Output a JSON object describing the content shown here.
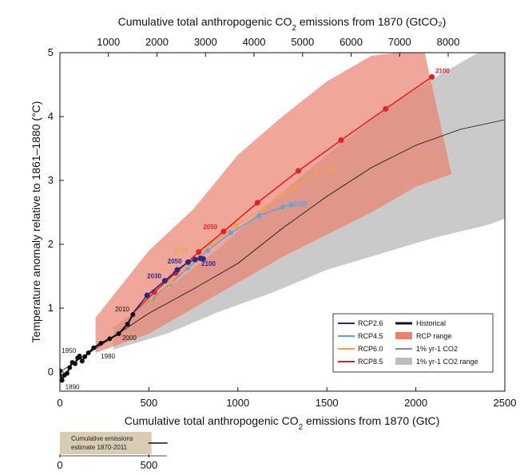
{
  "chart_data": {
    "type": "line",
    "xlabel_bottom": "Cumulative total anthropogenic CO2 emissions from 1870 (GtC)",
    "xlabel_top": "Cumulative total anthropogenic CO2 emissions from 1870 (GtCO2)",
    "ylabel": "Temperature anomaly relative to 1861–1880 (°C)",
    "xlim": [
      0,
      2500
    ],
    "ylim": [
      -0.3,
      5
    ],
    "xticks": [
      0,
      500,
      1000,
      1500,
      2000,
      2500
    ],
    "yticks": [
      0,
      1,
      2,
      3,
      4,
      5
    ],
    "xticks_top": [
      1000,
      2000,
      3000,
      4000,
      5000,
      6000,
      7000,
      8000
    ],
    "gtco2_per_gtc": 3.667,
    "colors": {
      "historical": "#111111",
      "rcp26": "#2b2a86",
      "rcp45": "#5aa6dc",
      "rcp60": "#f5a04a",
      "rcp85": "#e51f23",
      "pct_line": "#111111",
      "rcp_range": "#e9826d",
      "pct_range": "#bdbdbd"
    },
    "rcp_range": {
      "upper": [
        [
          200,
          0.85
        ],
        [
          500,
          1.9
        ],
        [
          750,
          2.55
        ],
        [
          1000,
          3.4
        ],
        [
          1250,
          4.0
        ],
        [
          1500,
          4.55
        ],
        [
          1750,
          4.95
        ],
        [
          1900,
          5.0
        ],
        [
          2050,
          5.0
        ]
      ],
      "lower": [
        [
          200,
          0.3
        ],
        [
          500,
          0.6
        ],
        [
          750,
          1.0
        ],
        [
          1000,
          1.4
        ],
        [
          1250,
          1.8
        ],
        [
          1500,
          2.15
        ],
        [
          1750,
          2.5
        ],
        [
          2000,
          2.9
        ],
        [
          2200,
          3.1
        ]
      ]
    },
    "pct_range": {
      "upper": [
        [
          300,
          0.7
        ],
        [
          600,
          1.3
        ],
        [
          900,
          1.95
        ],
        [
          1200,
          2.7
        ],
        [
          1500,
          3.4
        ],
        [
          1800,
          4.05
        ],
        [
          2100,
          4.6
        ],
        [
          2350,
          5.0
        ],
        [
          2500,
          5.0
        ]
      ],
      "lower": [
        [
          300,
          0.35
        ],
        [
          600,
          0.6
        ],
        [
          900,
          0.95
        ],
        [
          1200,
          1.25
        ],
        [
          1500,
          1.6
        ],
        [
          1800,
          1.85
        ],
        [
          2100,
          2.1
        ],
        [
          2400,
          2.3
        ],
        [
          2500,
          2.4
        ]
      ]
    },
    "pct_line": [
      [
        0,
        0.0
      ],
      [
        300,
        0.55
      ],
      [
        500,
        0.92
      ],
      [
        750,
        1.3
      ],
      [
        1000,
        1.7
      ],
      [
        1250,
        2.25
      ],
      [
        1500,
        2.75
      ],
      [
        1750,
        3.2
      ],
      [
        2000,
        3.55
      ],
      [
        2250,
        3.8
      ],
      [
        2500,
        3.95
      ]
    ],
    "series": [
      {
        "name": "Historical",
        "key": "historical",
        "points": [
          [
            0,
            0.02
          ],
          [
            12,
            -0.13
          ],
          [
            25,
            -0.05
          ],
          [
            40,
            -0.02
          ],
          [
            55,
            0.07
          ],
          [
            70,
            0.15
          ],
          [
            85,
            0.13
          ],
          [
            100,
            0.22
          ],
          [
            110,
            0.25
          ],
          [
            125,
            0.17
          ],
          [
            140,
            0.24
          ],
          [
            160,
            0.3
          ],
          [
            190,
            0.38
          ],
          [
            230,
            0.45
          ],
          [
            280,
            0.52
          ],
          [
            330,
            0.6
          ],
          [
            380,
            0.75
          ],
          [
            410,
            0.9
          ]
        ]
      },
      {
        "name": "RCP2.6",
        "key": "rcp26",
        "points": [
          [
            410,
            0.92
          ],
          [
            490,
            1.2
          ],
          [
            590,
            1.43
          ],
          [
            660,
            1.6
          ],
          [
            720,
            1.72
          ],
          [
            760,
            1.76
          ],
          [
            790,
            1.78
          ],
          [
            805,
            1.77
          ]
        ]
      },
      {
        "name": "RCP4.5",
        "key": "rcp45",
        "points": [
          [
            410,
            0.92
          ],
          [
            520,
            1.15
          ],
          [
            620,
            1.38
          ],
          [
            720,
            1.63
          ],
          [
            830,
            1.9
          ],
          [
            960,
            2.18
          ],
          [
            1120,
            2.45
          ],
          [
            1250,
            2.58
          ],
          [
            1300,
            2.62
          ]
        ]
      },
      {
        "name": "RCP6.0",
        "key": "rcp60",
        "points": [
          [
            410,
            0.92
          ],
          [
            510,
            1.15
          ],
          [
            620,
            1.4
          ],
          [
            720,
            1.68
          ],
          [
            850,
            2.0
          ],
          [
            990,
            2.3
          ],
          [
            1150,
            2.58
          ],
          [
            1320,
            2.9
          ],
          [
            1440,
            3.12
          ]
        ]
      },
      {
        "name": "RCP8.5",
        "key": "rcp85",
        "points": [
          [
            410,
            0.92
          ],
          [
            530,
            1.25
          ],
          [
            650,
            1.55
          ],
          [
            780,
            1.88
          ],
          [
            920,
            2.2
          ],
          [
            1110,
            2.65
          ],
          [
            1340,
            3.15
          ],
          [
            1580,
            3.63
          ],
          [
            1830,
            4.12
          ],
          [
            2090,
            4.62
          ]
        ]
      }
    ],
    "labels": {
      "hist_1950": "1950",
      "hist_1890": "1890",
      "hist_1980": "1980",
      "hist_2000": "2000",
      "hist_2010": "2010",
      "rcp26_2030": "2030",
      "rcp26_2050": "2050",
      "rcp26_2100": "2100",
      "rcp45_2100": "2100",
      "rcp60_2050": "2050",
      "rcp60_2100": "2100",
      "rcp85_2050": "2050",
      "rcp85_2100": "2100"
    },
    "legend": {
      "placement": "bottom-right",
      "left_items": [
        "RCP2.6",
        "RCP4.5",
        "RCP6.0",
        "RCP8.5"
      ],
      "right_items": [
        "Historical",
        "RCP range",
        "1% yr-1 CO2",
        "1% yr-1 CO2 range"
      ]
    },
    "inset": {
      "text_line1": "Cumulative emissions",
      "text_line2": "estimate 1870-2011",
      "range": [
        0,
        515
      ],
      "central": 515,
      "ticks": [
        0,
        500
      ]
    }
  }
}
